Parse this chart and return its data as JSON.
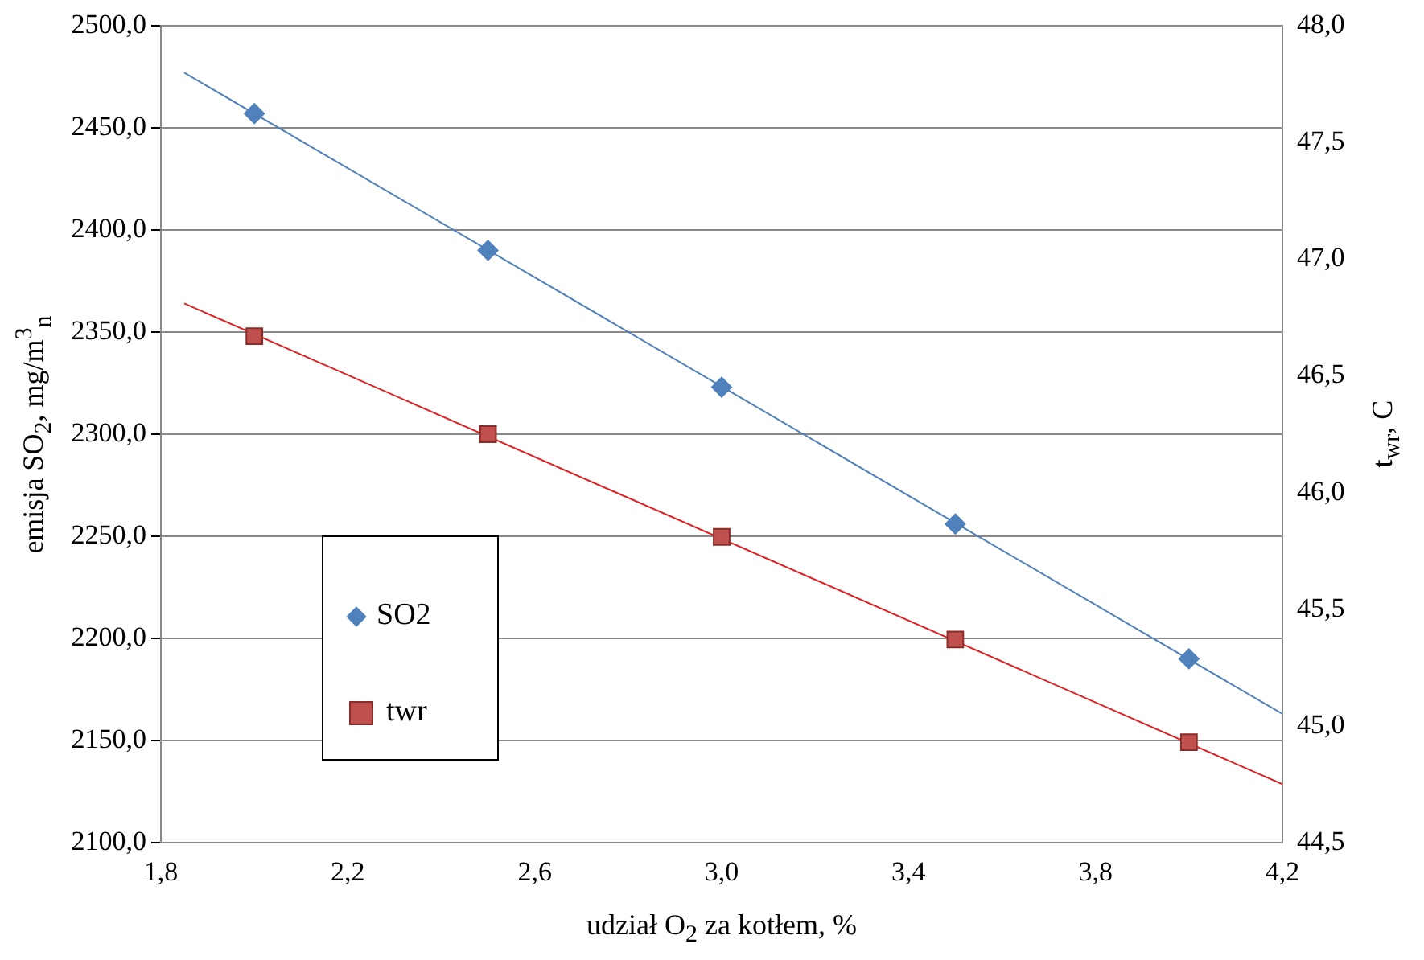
{
  "chart_data": {
    "type": "scatter",
    "xlabel": "udział O$_{2}$ za kotłem, %",
    "ylabel": "emisja SO$_{2}$, mg/m$^{3}$$_{n}$",
    "y2label": "t$_{wr}$, C",
    "xlim": [
      1.8,
      4.2
    ],
    "xticks": [
      {
        "value": 1.8,
        "label": "1,8"
      },
      {
        "value": 2.2,
        "label": "2,2"
      },
      {
        "value": 2.6,
        "label": "2,6"
      },
      {
        "value": 3.0,
        "label": "3,0"
      },
      {
        "value": 3.4,
        "label": "3,4"
      },
      {
        "value": 3.8,
        "label": "3,8"
      },
      {
        "value": 4.2,
        "label": "4,2"
      }
    ],
    "ylim": [
      2100,
      2500
    ],
    "yticks": [
      {
        "value": 2100,
        "label": "2100,0"
      },
      {
        "value": 2150,
        "label": "2150,0"
      },
      {
        "value": 2200,
        "label": "2200,0"
      },
      {
        "value": 2250,
        "label": "2250,0"
      },
      {
        "value": 2300,
        "label": "2300,0"
      },
      {
        "value": 2350,
        "label": "2350,0"
      },
      {
        "value": 2400,
        "label": "2400,0"
      },
      {
        "value": 2450,
        "label": "2450,0"
      },
      {
        "value": 2500,
        "label": "2500,0"
      }
    ],
    "y2lim": [
      44.5,
      48
    ],
    "y2ticks": [
      {
        "value": 44.5,
        "label": "44,5"
      },
      {
        "value": 45,
        "label": "45,0"
      },
      {
        "value": 45.5,
        "label": "45,5"
      },
      {
        "value": 46,
        "label": "46,0"
      },
      {
        "value": 46.5,
        "label": "46,5"
      },
      {
        "value": 47,
        "label": "47,0"
      },
      {
        "value": 47.5,
        "label": "47,5"
      },
      {
        "value": 48,
        "label": "48,0"
      }
    ],
    "grid": "y",
    "legend": "bottom left",
    "series": [
      {
        "name": "SO2",
        "type": "scatter",
        "marker": "diamond",
        "color": "#4f81bd",
        "x": [
          2.0,
          2.5,
          3.0,
          3.5,
          4.0
        ],
        "values": [
          2457,
          2390,
          2323,
          2256,
          2190
        ]
      },
      {
        "name": "twr",
        "type": "scatter",
        "marker": "square",
        "color": "#c0504d",
        "axis": "y2",
        "x": [
          2.0,
          2.5,
          3.0,
          3.5,
          4.0
        ],
        "values": [
          46.67,
          46.25,
          45.81,
          45.37,
          44.93
        ]
      },
      {
        "type": "line",
        "marker": "none",
        "color": "#4f81bd",
        "x": [
          1.85,
          4.2
        ],
        "values": [
          2477,
          2163
        ]
      },
      {
        "type": "line",
        "marker": "none",
        "color": "#e02020",
        "axis": "y2",
        "x": [
          1.85,
          4.2
        ],
        "values": [
          46.81,
          44.75
        ]
      }
    ]
  }
}
